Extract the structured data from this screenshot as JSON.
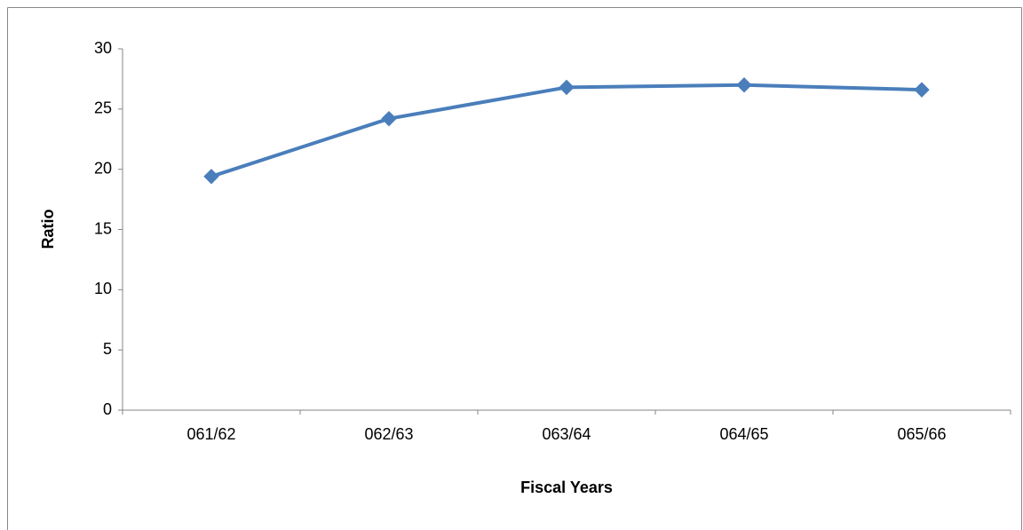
{
  "chart_data": {
    "type": "line",
    "x_label": "Fiscal Years",
    "y_label": "Ratio",
    "categories": [
      "061/62",
      "062/63",
      "063/64",
      "064/65",
      "065/66"
    ],
    "series": [
      {
        "name": "Ratio",
        "color": "#4a7ebb",
        "values": [
          19.4,
          24.2,
          26.8,
          27.0,
          26.6
        ]
      }
    ],
    "ylim": [
      0,
      30
    ],
    "yticks": [
      0,
      5,
      10,
      15,
      20,
      25,
      30
    ],
    "grid": false,
    "legend": false
  }
}
